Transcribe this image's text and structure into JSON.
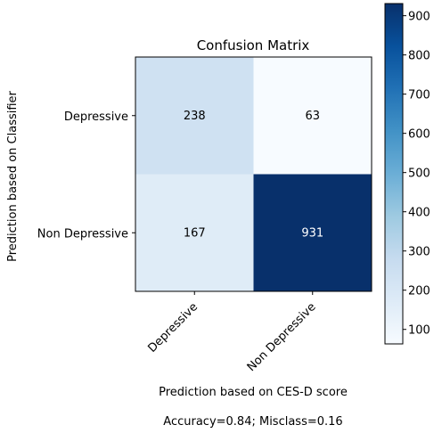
{
  "chart_data": {
    "type": "heatmap",
    "title": "Confusion Matrix",
    "xlabel": "Prediction based on CES-D score",
    "ylabel": "Prediction based on Classifier",
    "x_categories": [
      "Depressive",
      "Non Depressive"
    ],
    "y_categories": [
      "Depressive",
      "Non Depressive"
    ],
    "values": [
      [
        238,
        63
      ],
      [
        167,
        931
      ]
    ],
    "colormap": "Blues",
    "color_range": [
      63,
      931
    ],
    "colorbar_ticks": [
      100,
      200,
      300,
      400,
      500,
      600,
      700,
      800,
      900
    ],
    "footer": "Accuracy=0.84; Misclass=0.16"
  }
}
